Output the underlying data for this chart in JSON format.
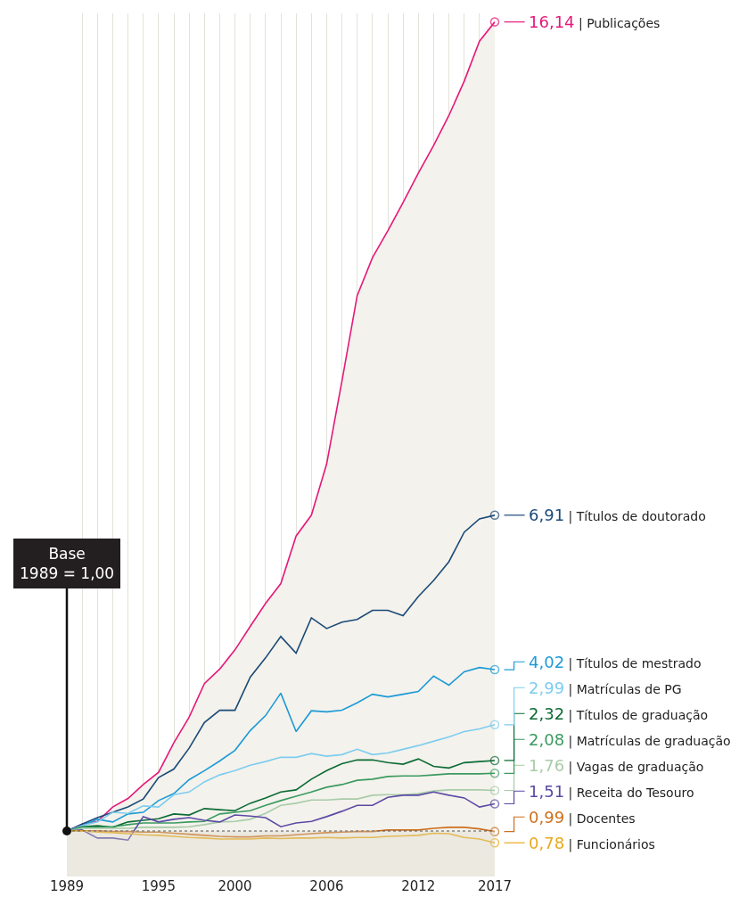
{
  "chart_data": {
    "type": "line",
    "x": [
      1989,
      1990,
      1991,
      1992,
      1993,
      1994,
      1995,
      1996,
      1997,
      1998,
      1999,
      2000,
      2001,
      2002,
      2003,
      2004,
      2005,
      2006,
      2007,
      2008,
      2009,
      2010,
      2011,
      2012,
      2013,
      2014,
      2015,
      2016,
      2017
    ],
    "xlim": [
      1989,
      2017
    ],
    "xticks": [
      1989,
      {
        "value": 1990,
        "label": null
      },
      {
        "value": 1991,
        "label": null
      },
      {
        "value": 1992,
        "label": null
      },
      {
        "value": 1993,
        "label": null
      },
      {
        "value": 1994,
        "label": null
      },
      1995,
      {
        "value": 1996,
        "label": null
      },
      {
        "value": 1997,
        "label": null
      },
      {
        "value": 1998,
        "label": null
      },
      {
        "value": 1999,
        "label": null
      },
      2000,
      {
        "value": 2001,
        "label": null
      },
      {
        "value": 2002,
        "label": null
      },
      {
        "value": 2003,
        "label": null
      },
      {
        "value": 2004,
        "label": null
      },
      {
        "value": 2005,
        "label": null
      },
      2006,
      {
        "value": 2007,
        "label": null
      },
      {
        "value": 2008,
        "label": null
      },
      {
        "value": 2009,
        "label": null
      },
      {
        "value": 2010,
        "label": null
      },
      {
        "value": 2011,
        "label": null
      },
      2012,
      {
        "value": 2013,
        "label": null
      },
      {
        "value": 2014,
        "label": null
      },
      {
        "value": 2015,
        "label": null
      },
      {
        "value": 2016,
        "label": null
      },
      2017
    ],
    "ylim": [
      0.15,
      16.3
    ],
    "tick_labels": "x",
    "grid": "x",
    "series": [
      {
        "name": "| Publicações",
        "type": "area",
        "color": "#e5197a",
        "values": [
          1.0,
          1.13,
          1.18,
          1.45,
          1.61,
          1.87,
          2.1,
          2.65,
          3.13,
          3.76,
          4.03,
          4.39,
          4.83,
          5.26,
          5.63,
          6.52,
          6.91,
          7.87,
          9.42,
          11.02,
          11.73,
          12.23,
          12.76,
          13.31,
          13.83,
          14.39,
          15.03,
          15.78,
          16.14
        ],
        "value_labels": [
          null,
          null,
          null,
          null,
          null,
          null,
          null,
          null,
          null,
          null,
          null,
          null,
          null,
          null,
          null,
          null,
          null,
          null,
          null,
          null,
          null,
          null,
          null,
          null,
          null,
          null,
          null,
          null,
          "16,14"
        ]
      },
      {
        "name": "| Títulos de doutorado",
        "color": "#1a4a78",
        "values": [
          1.0,
          1.13,
          1.25,
          1.35,
          1.45,
          1.6,
          2.0,
          2.16,
          2.55,
          3.03,
          3.26,
          3.26,
          3.88,
          4.24,
          4.64,
          4.33,
          4.99,
          4.79,
          4.91,
          4.96,
          5.13,
          5.13,
          5.03,
          5.39,
          5.69,
          6.04,
          6.59,
          6.84,
          6.91
        ],
        "value_labels": [
          null,
          null,
          null,
          null,
          null,
          null,
          null,
          null,
          null,
          null,
          null,
          null,
          null,
          null,
          null,
          null,
          null,
          null,
          null,
          null,
          null,
          null,
          null,
          null,
          null,
          null,
          null,
          null,
          "6,91"
        ]
      },
      {
        "name": "| Títulos de mestrado",
        "color": "#1c9ad6",
        "values": [
          1.0,
          1.1,
          1.22,
          1.17,
          1.32,
          1.35,
          1.57,
          1.7,
          1.96,
          2.13,
          2.31,
          2.51,
          2.88,
          3.16,
          3.58,
          2.86,
          3.25,
          3.23,
          3.26,
          3.4,
          3.56,
          3.51,
          3.56,
          3.61,
          3.9,
          3.73,
          3.98,
          4.06,
          4.02
        ],
        "value_labels": [
          null,
          null,
          null,
          null,
          null,
          null,
          null,
          null,
          null,
          null,
          null,
          null,
          null,
          null,
          null,
          null,
          null,
          null,
          null,
          null,
          null,
          null,
          null,
          null,
          null,
          null,
          null,
          null,
          "4,02"
        ]
      },
      {
        "name": "| Matrículas de PG",
        "color": "#7dcdf0",
        "values": [
          1.0,
          1.1,
          1.17,
          1.35,
          1.33,
          1.47,
          1.45,
          1.68,
          1.73,
          1.92,
          2.05,
          2.13,
          2.23,
          2.3,
          2.38,
          2.38,
          2.45,
          2.4,
          2.43,
          2.53,
          2.43,
          2.46,
          2.53,
          2.6,
          2.68,
          2.76,
          2.86,
          2.91,
          2.99
        ],
        "value_labels": [
          null,
          null,
          null,
          null,
          null,
          null,
          null,
          null,
          null,
          null,
          null,
          null,
          null,
          null,
          null,
          null,
          null,
          null,
          null,
          null,
          null,
          null,
          null,
          null,
          null,
          null,
          null,
          null,
          "2,99"
        ]
      },
      {
        "name": "| Títulos de graduação",
        "color": "#0b6b35",
        "values": [
          1.0,
          1.08,
          1.1,
          1.07,
          1.17,
          1.2,
          1.23,
          1.32,
          1.3,
          1.42,
          1.4,
          1.38,
          1.52,
          1.62,
          1.73,
          1.77,
          1.97,
          2.13,
          2.26,
          2.33,
          2.33,
          2.28,
          2.25,
          2.35,
          2.21,
          2.18,
          2.28,
          2.3,
          2.32
        ],
        "value_labels": [
          null,
          null,
          null,
          null,
          null,
          null,
          null,
          null,
          null,
          null,
          null,
          null,
          null,
          null,
          null,
          null,
          null,
          null,
          null,
          null,
          null,
          null,
          null,
          null,
          null,
          null,
          null,
          null,
          "2,32"
        ]
      },
      {
        "name": "| Matrículas de graduação",
        "color": "#3a9a60",
        "values": [
          1.0,
          1.07,
          1.07,
          1.08,
          1.12,
          1.15,
          1.15,
          1.15,
          1.17,
          1.18,
          1.32,
          1.35,
          1.38,
          1.48,
          1.57,
          1.65,
          1.73,
          1.82,
          1.87,
          1.95,
          1.97,
          2.02,
          2.03,
          2.03,
          2.05,
          2.07,
          2.07,
          2.07,
          2.08
        ],
        "value_labels": [
          null,
          null,
          null,
          null,
          null,
          null,
          null,
          null,
          null,
          null,
          null,
          null,
          null,
          null,
          null,
          null,
          null,
          null,
          null,
          null,
          null,
          null,
          null,
          null,
          null,
          null,
          null,
          null,
          "2,08"
        ]
      },
      {
        "name": "| Vagas de graduação",
        "color": "#a8cca8",
        "values": [
          1.0,
          1.05,
          1.05,
          1.05,
          1.05,
          1.07,
          1.07,
          1.07,
          1.08,
          1.12,
          1.17,
          1.18,
          1.22,
          1.33,
          1.48,
          1.52,
          1.58,
          1.58,
          1.6,
          1.6,
          1.67,
          1.68,
          1.68,
          1.7,
          1.75,
          1.77,
          1.77,
          1.77,
          1.76
        ],
        "value_labels": [
          null,
          null,
          null,
          null,
          null,
          null,
          null,
          null,
          null,
          null,
          null,
          null,
          null,
          null,
          null,
          null,
          null,
          null,
          null,
          null,
          null,
          null,
          null,
          null,
          null,
          null,
          null,
          null,
          "1,76"
        ]
      },
      {
        "name": "| Receita do Tesouro",
        "color": "#5a4aa5",
        "values": [
          1.0,
          1.02,
          0.87,
          0.87,
          0.83,
          1.27,
          1.17,
          1.22,
          1.25,
          1.2,
          1.17,
          1.3,
          1.28,
          1.25,
          1.08,
          1.15,
          1.18,
          1.27,
          1.37,
          1.48,
          1.48,
          1.63,
          1.67,
          1.67,
          1.73,
          1.67,
          1.62,
          1.45,
          1.51
        ],
        "value_labels": [
          null,
          null,
          null,
          null,
          null,
          null,
          null,
          null,
          null,
          null,
          null,
          null,
          null,
          null,
          null,
          null,
          null,
          null,
          null,
          null,
          null,
          null,
          null,
          null,
          null,
          null,
          null,
          null,
          "1,51"
        ]
      },
      {
        "name": "| Docentes",
        "color": "#cc6f1e",
        "values": [
          1.0,
          1.0,
          1.0,
          0.99,
          0.99,
          0.98,
          0.98,
          0.96,
          0.94,
          0.92,
          0.9,
          0.89,
          0.89,
          0.91,
          0.91,
          0.93,
          0.95,
          0.97,
          0.98,
          0.99,
          0.99,
          1.02,
          1.02,
          1.02,
          1.05,
          1.07,
          1.07,
          1.04,
          0.99
        ],
        "value_labels": [
          null,
          null,
          null,
          null,
          null,
          null,
          null,
          null,
          null,
          null,
          null,
          null,
          null,
          null,
          null,
          null,
          null,
          null,
          null,
          null,
          null,
          null,
          null,
          null,
          null,
          null,
          null,
          null,
          "0,99"
        ]
      },
      {
        "name": "| Funcionários",
        "color": "#e9a91c",
        "values": [
          1.0,
          1.0,
          0.98,
          0.97,
          0.95,
          0.93,
          0.92,
          0.9,
          0.88,
          0.87,
          0.85,
          0.85,
          0.85,
          0.87,
          0.86,
          0.87,
          0.87,
          0.88,
          0.87,
          0.88,
          0.88,
          0.9,
          0.91,
          0.92,
          0.96,
          0.95,
          0.88,
          0.85,
          0.78
        ],
        "value_labels": [
          null,
          null,
          null,
          null,
          null,
          null,
          null,
          null,
          null,
          null,
          null,
          null,
          null,
          null,
          null,
          null,
          null,
          null,
          null,
          null,
          null,
          null,
          null,
          null,
          null,
          null,
          null,
          null,
          "0,78"
        ]
      }
    ],
    "ref_lines": [
      {
        "axis": "y",
        "value": 1,
        "line_style": "dotted",
        "color": "#555555"
      }
    ],
    "bands": [
      {
        "axis": "y",
        "from": 0.15,
        "to": 1,
        "color": "#d9d9cc"
      }
    ],
    "annotations": [
      {
        "text": "Base\n1989 = 1,00",
        "x": 1989,
        "y": 1
      }
    ]
  }
}
